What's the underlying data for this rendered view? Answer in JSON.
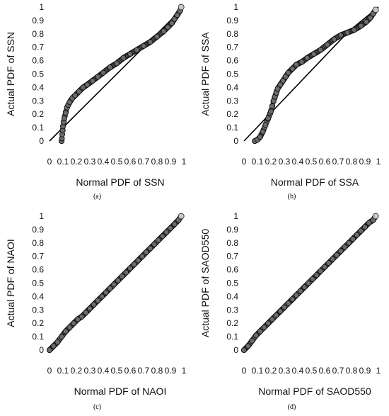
{
  "chart_data": [
    {
      "type": "scatter",
      "caption": "(a)",
      "xlabel": "Normal PDF of SSN",
      "ylabel": "Actual PDF of SSN",
      "xlim": [
        0,
        1
      ],
      "ylim": [
        0,
        1
      ],
      "ticks": [
        "0",
        "0.1",
        "0.2",
        "0.3",
        "0.4",
        "0.5",
        "0.6",
        "0.7",
        "0.8",
        "0.9",
        "1"
      ],
      "reference_line": [
        [
          0,
          0
        ],
        [
          1,
          1
        ]
      ],
      "series": [
        {
          "x": [
            0.09,
            0.092,
            0.095,
            0.098,
            0.1,
            0.105,
            0.11,
            0.12,
            0.13,
            0.14,
            0.15,
            0.17,
            0.19,
            0.22,
            0.25,
            0.28,
            0.32,
            0.36,
            0.4,
            0.45,
            0.5,
            0.55,
            0.6,
            0.65,
            0.7,
            0.75,
            0.8,
            0.85,
            0.88,
            0.91,
            0.93,
            0.95,
            0.97,
            0.98
          ],
          "y": [
            0.0,
            0.02,
            0.05,
            0.08,
            0.11,
            0.14,
            0.17,
            0.21,
            0.25,
            0.27,
            0.29,
            0.32,
            0.34,
            0.37,
            0.4,
            0.42,
            0.45,
            0.48,
            0.51,
            0.55,
            0.58,
            0.62,
            0.65,
            0.68,
            0.71,
            0.74,
            0.78,
            0.82,
            0.85,
            0.88,
            0.91,
            0.94,
            0.97,
            1.0
          ]
        }
      ]
    },
    {
      "type": "scatter",
      "caption": "(b)",
      "xlabel": "Normal PDF of SSA",
      "ylabel": "Actual PDF of SSA",
      "xlim": [
        0,
        1
      ],
      "ylim": [
        0,
        1
      ],
      "ticks": [
        "0",
        "0.1",
        "0.2",
        "0.3",
        "0.4",
        "0.5",
        "0.6",
        "0.7",
        "0.8",
        "0.9",
        "1"
      ],
      "reference_line": [
        [
          0,
          0
        ],
        [
          0.78,
          0.82
        ],
        [
          1,
          1
        ]
      ],
      "series": [
        {
          "x": [
            0.08,
            0.1,
            0.12,
            0.14,
            0.16,
            0.18,
            0.2,
            0.21,
            0.22,
            0.23,
            0.24,
            0.25,
            0.27,
            0.29,
            0.31,
            0.33,
            0.36,
            0.39,
            0.43,
            0.47,
            0.52,
            0.57,
            0.62,
            0.67,
            0.72,
            0.77,
            0.82,
            0.87,
            0.91,
            0.94,
            0.96,
            0.98
          ],
          "y": [
            0.0,
            0.01,
            0.03,
            0.07,
            0.12,
            0.17,
            0.22,
            0.26,
            0.3,
            0.33,
            0.36,
            0.39,
            0.42,
            0.45,
            0.48,
            0.51,
            0.54,
            0.57,
            0.59,
            0.62,
            0.65,
            0.68,
            0.72,
            0.76,
            0.79,
            0.81,
            0.83,
            0.86,
            0.89,
            0.92,
            0.95,
            0.98
          ]
        }
      ]
    },
    {
      "type": "scatter",
      "caption": "(c)",
      "xlabel": "Normal PDF of NAOI",
      "ylabel": "Actual PDF of NAOI",
      "xlim": [
        0,
        1
      ],
      "ylim": [
        0,
        1
      ],
      "ticks": [
        "0",
        "0.1",
        "0.2",
        "0.3",
        "0.4",
        "0.5",
        "0.6",
        "0.7",
        "0.8",
        "0.9",
        "1"
      ],
      "reference_line": [
        [
          0,
          0
        ],
        [
          1,
          1
        ]
      ],
      "series": [
        {
          "x": [
            0.0,
            0.03,
            0.06,
            0.09,
            0.12,
            0.15,
            0.18,
            0.21,
            0.24,
            0.27,
            0.3,
            0.33,
            0.36,
            0.39,
            0.42,
            0.45,
            0.48,
            0.51,
            0.54,
            0.57,
            0.6,
            0.63,
            0.66,
            0.69,
            0.72,
            0.75,
            0.78,
            0.81,
            0.84,
            0.87,
            0.9,
            0.93,
            0.96,
            0.98
          ],
          "y": [
            0.0,
            0.03,
            0.06,
            0.1,
            0.14,
            0.17,
            0.2,
            0.23,
            0.25,
            0.28,
            0.31,
            0.34,
            0.37,
            0.4,
            0.43,
            0.46,
            0.49,
            0.52,
            0.55,
            0.58,
            0.61,
            0.64,
            0.67,
            0.7,
            0.73,
            0.76,
            0.79,
            0.82,
            0.85,
            0.88,
            0.91,
            0.94,
            0.97,
            1.0
          ]
        }
      ]
    },
    {
      "type": "scatter",
      "caption": "(d)",
      "xlabel": "Normal PDF of SAOD550",
      "ylabel": "Actual PDF of SAOD550",
      "xlim": [
        0,
        1
      ],
      "ylim": [
        0,
        1
      ],
      "ticks": [
        "0",
        "0.1",
        "0.2",
        "0.3",
        "0.4",
        "0.5",
        "0.6",
        "0.7",
        "0.8",
        "0.9",
        "1"
      ],
      "reference_line": [
        [
          0,
          0
        ],
        [
          1,
          1
        ]
      ],
      "series": [
        {
          "x": [
            0.0,
            0.03,
            0.06,
            0.09,
            0.12,
            0.15,
            0.18,
            0.21,
            0.24,
            0.27,
            0.3,
            0.33,
            0.36,
            0.39,
            0.42,
            0.45,
            0.48,
            0.51,
            0.54,
            0.57,
            0.6,
            0.63,
            0.66,
            0.69,
            0.72,
            0.75,
            0.78,
            0.81,
            0.84,
            0.87,
            0.9,
            0.93,
            0.96,
            0.98
          ],
          "y": [
            0.0,
            0.03,
            0.07,
            0.11,
            0.14,
            0.17,
            0.2,
            0.23,
            0.26,
            0.29,
            0.32,
            0.35,
            0.38,
            0.41,
            0.44,
            0.47,
            0.5,
            0.53,
            0.56,
            0.59,
            0.62,
            0.65,
            0.68,
            0.71,
            0.74,
            0.77,
            0.8,
            0.83,
            0.86,
            0.89,
            0.92,
            0.95,
            0.97,
            1.0
          ]
        }
      ]
    }
  ]
}
